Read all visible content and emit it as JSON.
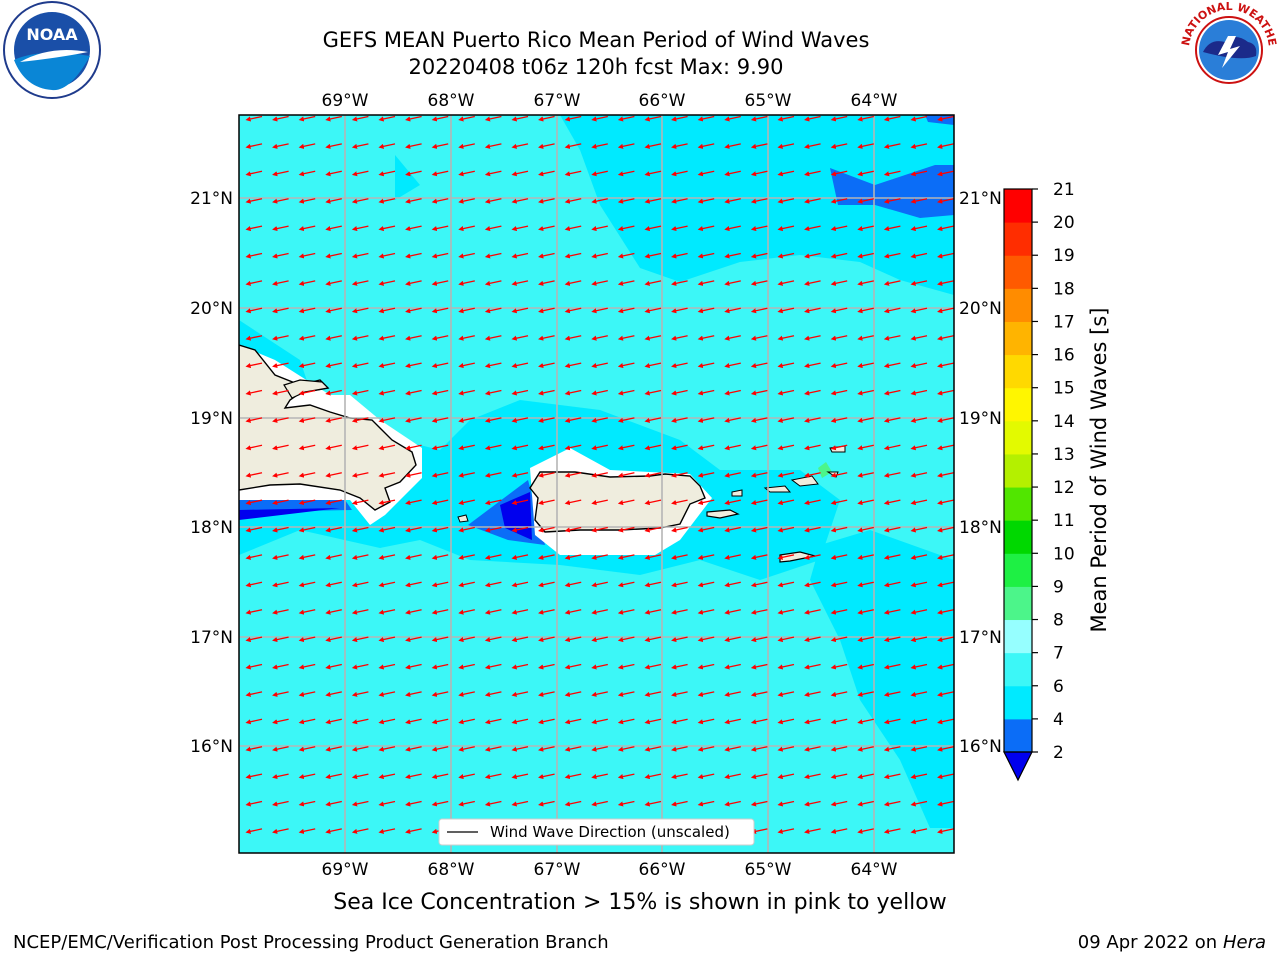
{
  "title_line1": "GEFS MEAN Puerto Rico Mean Period of Wind Waves",
  "title_line2": "20220408 t06z 120h fcst   Max: 9.90",
  "legend_label": "Wind Wave Direction (unscaled)",
  "seaice_note": "Sea Ice Concentration > 15% is shown in pink to yellow",
  "footer_left": "NCEP/EMC/Verification Post Processing Product Generation Branch",
  "footer_date": "09 Apr 2022 on ",
  "footer_host": "Hera",
  "colorbar": {
    "label": "Mean Period of Wind Waves [s]",
    "ticks": [
      "2",
      "4",
      "6",
      "7",
      "8",
      "9",
      "10",
      "11",
      "12",
      "13",
      "14",
      "15",
      "16",
      "17",
      "18",
      "19",
      "20",
      "21"
    ],
    "colors": [
      "#0b6df7",
      "#00eaff",
      "#3cf7f7",
      "#96ffff",
      "#4cf58a",
      "#1ef044",
      "#00d800",
      "#51e600",
      "#b4f000",
      "#e3fa00",
      "#fff600",
      "#ffd900",
      "#ffb400",
      "#ff8c00",
      "#ff5a00",
      "#ff2d00",
      "#ff0000"
    ],
    "under_color": "#0000ee"
  },
  "map": {
    "lon_labels": [
      "69°W",
      "68°W",
      "67°W",
      "66°W",
      "65°W",
      "64°W"
    ],
    "lat_labels": [
      "21°N",
      "20°N",
      "19°N",
      "18°N",
      "17°N",
      "16°N"
    ],
    "ocean_color": "#3cf7f7",
    "land_color": "#efedde",
    "arrow_color": "#ff0000"
  },
  "logos": {
    "noaa": "NOAA",
    "nws": "NATIONAL WEATHER SERVICE"
  }
}
